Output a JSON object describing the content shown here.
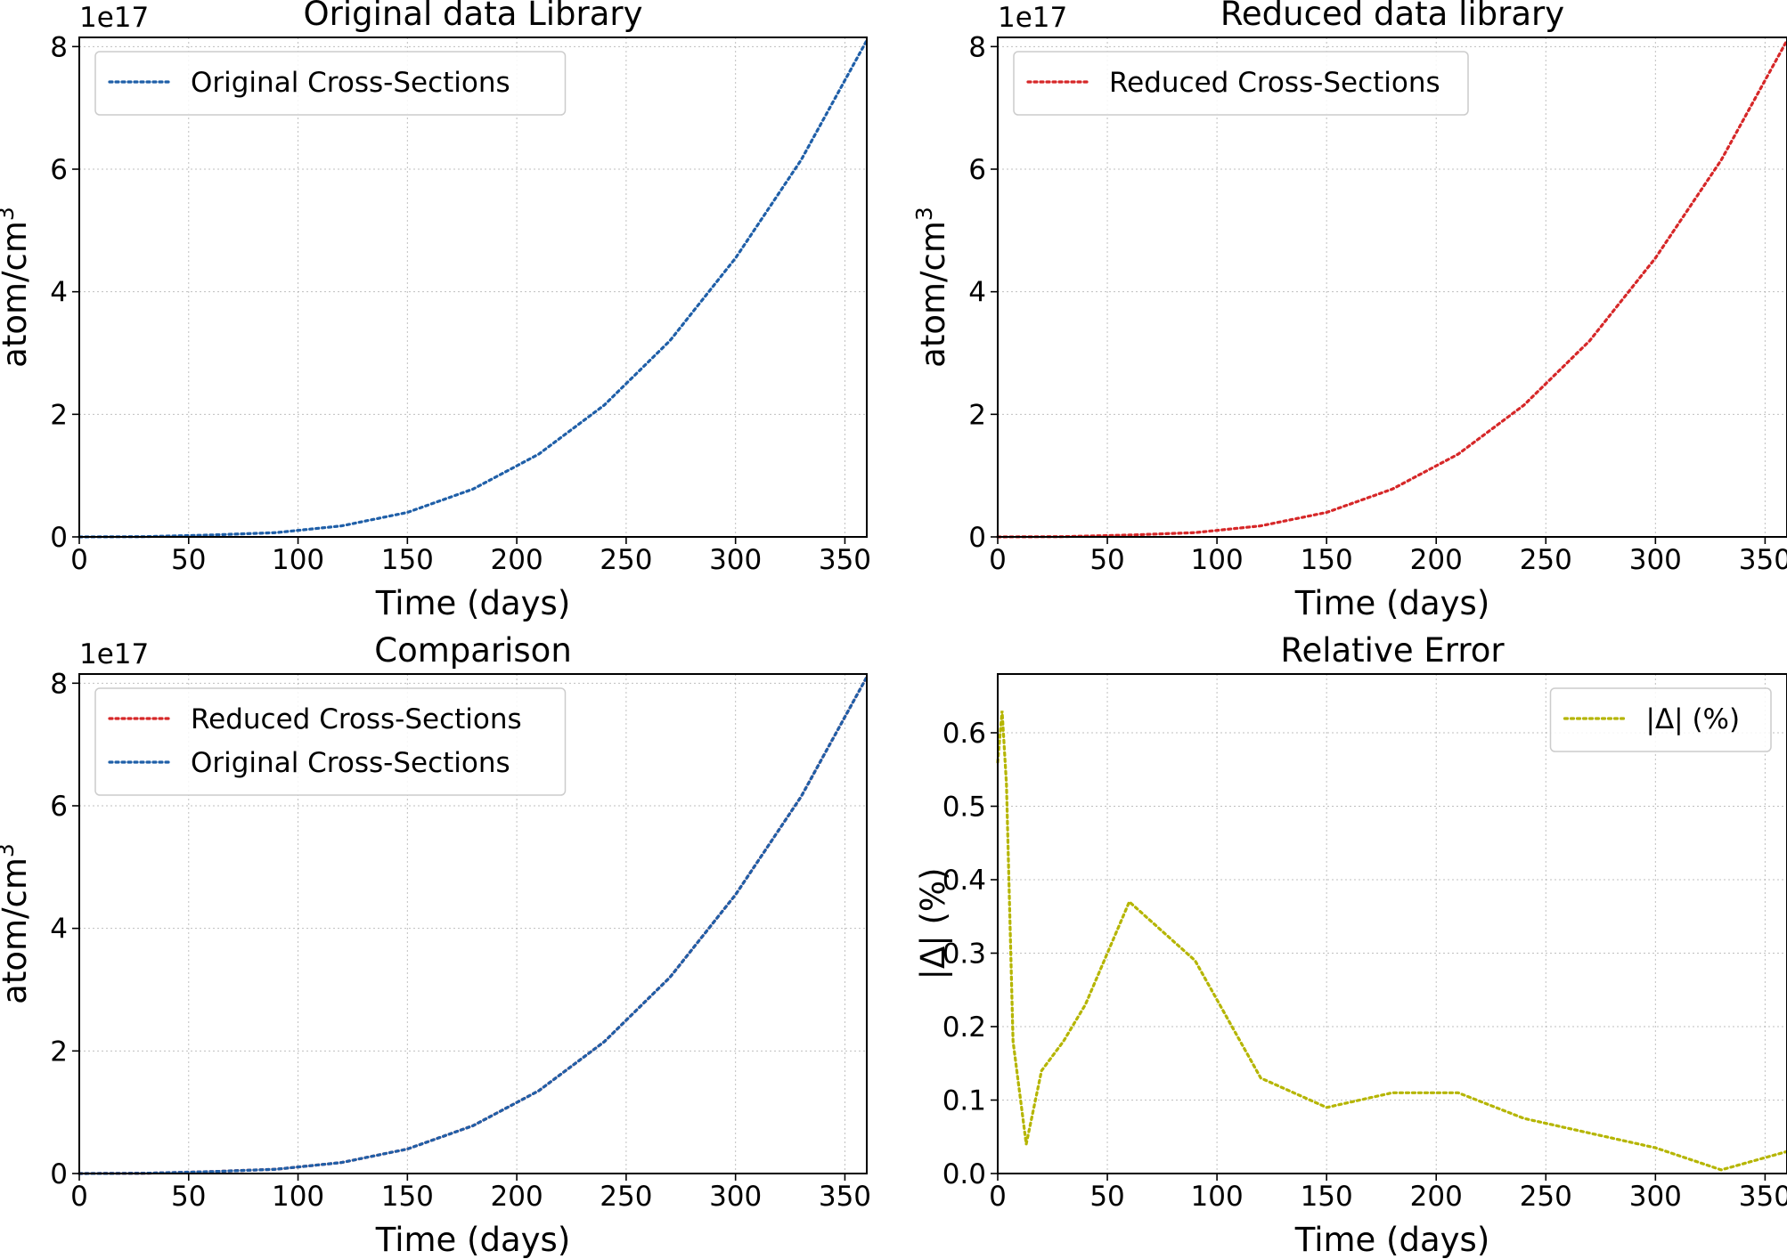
{
  "figure": {
    "offset_label": "1e17"
  },
  "colors": {
    "original": "#1f5fa8",
    "reduced": "#d62728",
    "error": "#b5b500"
  },
  "chart_data": [
    {
      "id": "original",
      "type": "line",
      "title": "Original data Library",
      "xlabel": "Time (days)",
      "ylabel": "atom/cm",
      "ylabel_sup": "3",
      "offset": "1e17",
      "xlim": [
        0,
        360
      ],
      "ylim": [
        0,
        8.15
      ],
      "xticks": [
        0,
        50,
        100,
        150,
        200,
        250,
        300,
        350
      ],
      "yticks": [
        0,
        2,
        4,
        6,
        8
      ],
      "grid": true,
      "legend_position": "upper-left",
      "series": [
        {
          "name": "Original Cross-Sections",
          "color": "#1f5fa8",
          "x": [
            0,
            30,
            60,
            90,
            120,
            150,
            180,
            210,
            240,
            270,
            300,
            330,
            360
          ],
          "y": [
            0.0,
            0.005,
            0.03,
            0.07,
            0.18,
            0.4,
            0.78,
            1.35,
            2.15,
            3.2,
            4.55,
            6.15,
            8.1
          ]
        }
      ]
    },
    {
      "id": "reduced",
      "type": "line",
      "title": "Reduced data library",
      "xlabel": "Time (days)",
      "ylabel": "atom/cm",
      "ylabel_sup": "3",
      "offset": "1e17",
      "xlim": [
        0,
        360
      ],
      "ylim": [
        0,
        8.15
      ],
      "xticks": [
        0,
        50,
        100,
        150,
        200,
        250,
        300,
        350
      ],
      "yticks": [
        0,
        2,
        4,
        6,
        8
      ],
      "grid": true,
      "legend_position": "upper-left",
      "series": [
        {
          "name": "Reduced Cross-Sections",
          "color": "#d62728",
          "x": [
            0,
            30,
            60,
            90,
            120,
            150,
            180,
            210,
            240,
            270,
            300,
            330,
            360
          ],
          "y": [
            0.0,
            0.005,
            0.03,
            0.07,
            0.18,
            0.4,
            0.78,
            1.35,
            2.15,
            3.2,
            4.55,
            6.15,
            8.1
          ]
        }
      ]
    },
    {
      "id": "comparison",
      "type": "line",
      "title": "Comparison",
      "xlabel": "Time (days)",
      "ylabel": "atom/cm",
      "ylabel_sup": "3",
      "offset": "1e17",
      "xlim": [
        0,
        360
      ],
      "ylim": [
        0,
        8.15
      ],
      "xticks": [
        0,
        50,
        100,
        150,
        200,
        250,
        300,
        350
      ],
      "yticks": [
        0,
        2,
        4,
        6,
        8
      ],
      "grid": true,
      "legend_position": "upper-left",
      "series": [
        {
          "name": "Reduced Cross-Sections",
          "color": "#d62728",
          "x": [
            0,
            30,
            60,
            90,
            120,
            150,
            180,
            210,
            240,
            270,
            300,
            330,
            360
          ],
          "y": [
            0.0,
            0.005,
            0.03,
            0.07,
            0.18,
            0.4,
            0.78,
            1.35,
            2.15,
            3.2,
            4.55,
            6.15,
            8.1
          ]
        },
        {
          "name": "Original Cross-Sections",
          "color": "#1f5fa8",
          "x": [
            0,
            30,
            60,
            90,
            120,
            150,
            180,
            210,
            240,
            270,
            300,
            330,
            360
          ],
          "y": [
            0.0,
            0.005,
            0.03,
            0.07,
            0.18,
            0.4,
            0.78,
            1.35,
            2.15,
            3.2,
            4.55,
            6.15,
            8.1
          ]
        }
      ]
    },
    {
      "id": "relerr",
      "type": "line",
      "title": "Relative Error",
      "xlabel": "Time (days)",
      "ylabel": "|Δ| (%)",
      "ylabel_sup": "",
      "offset": "",
      "xlim": [
        0,
        360
      ],
      "ylim": [
        0,
        0.68
      ],
      "xticks": [
        0,
        50,
        100,
        150,
        200,
        250,
        300,
        350
      ],
      "yticks": [
        0.0,
        0.1,
        0.2,
        0.3,
        0.4,
        0.5,
        0.6
      ],
      "ytick_labels": [
        "0.0",
        "0.1",
        "0.2",
        "0.3",
        "0.4",
        "0.5",
        "0.6"
      ],
      "grid": true,
      "legend_position": "upper-right",
      "series": [
        {
          "name": "|Δ| (%)",
          "color": "#b5b500",
          "x": [
            0,
            2,
            4,
            7,
            13,
            20,
            25,
            30,
            40,
            50,
            60,
            90,
            120,
            150,
            180,
            210,
            240,
            270,
            300,
            330,
            360
          ],
          "y": [
            0.56,
            0.63,
            0.53,
            0.18,
            0.04,
            0.14,
            0.16,
            0.18,
            0.23,
            0.3,
            0.37,
            0.29,
            0.13,
            0.09,
            0.11,
            0.11,
            0.075,
            0.055,
            0.035,
            0.005,
            0.03
          ]
        }
      ]
    }
  ]
}
